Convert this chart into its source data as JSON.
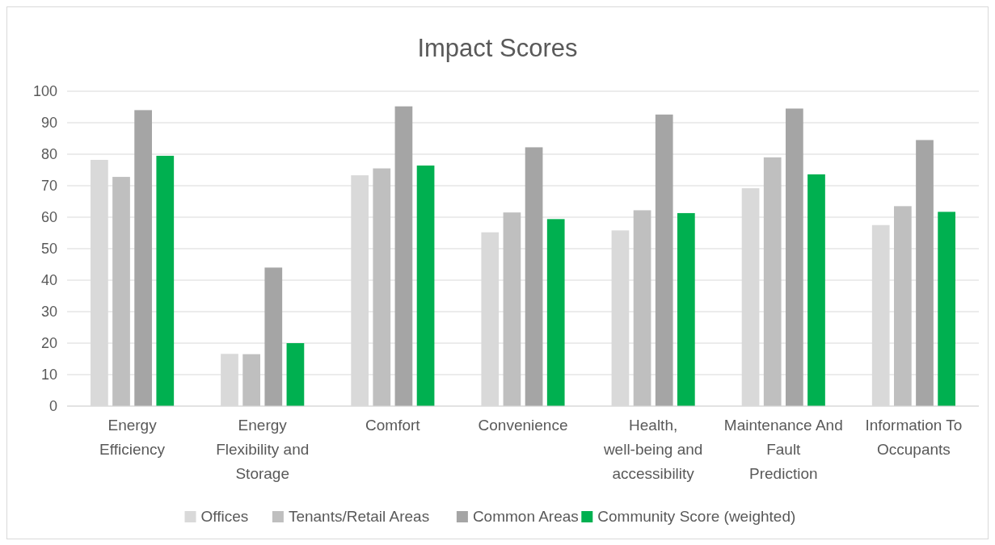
{
  "chart_data": {
    "type": "bar",
    "title": "Impact Scores",
    "categories": [
      "Energy Efficiency",
      "Energy Flexibility and Storage",
      "Comfort",
      "Convenience",
      "Health, well-being and accessibility",
      "Maintenance And Fault Prediction",
      "Information To Occupants"
    ],
    "series": [
      {
        "name": "Offices",
        "color": "#d9d9d9",
        "values": [
          78.2,
          16.6,
          73.3,
          55.2,
          55.8,
          69.2,
          57.5
        ]
      },
      {
        "name": "Tenants/Retail Areas",
        "color": "#bfbfbf",
        "values": [
          72.8,
          16.5,
          75.5,
          61.5,
          62.2,
          79,
          63.5
        ]
      },
      {
        "name": "Common Areas",
        "color": "#a5a5a5",
        "values": [
          94,
          44,
          95.2,
          82.2,
          92.6,
          94.5,
          84.5
        ]
      },
      {
        "name": "Community Score (weighted)",
        "color": "#00b050",
        "values": [
          79.5,
          20,
          76.4,
          59.4,
          61.3,
          73.6,
          61.7
        ]
      }
    ],
    "ylim": [
      0,
      100
    ],
    "yticks": [
      0,
      10,
      20,
      30,
      40,
      50,
      60,
      70,
      80,
      90,
      100
    ],
    "grid": "y",
    "legend": "bottom"
  }
}
